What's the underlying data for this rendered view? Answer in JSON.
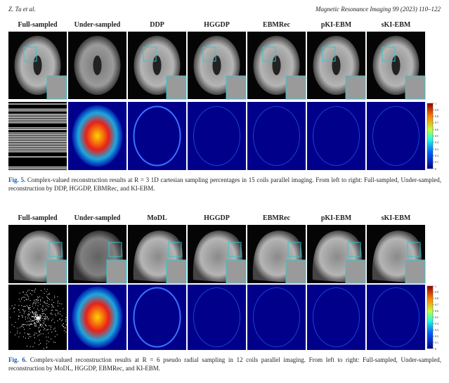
{
  "header": {
    "authors": "Z. Tu et al.",
    "journal": "Magnetic Resonance Imaging 99 (2023) 110–122"
  },
  "figures": [
    {
      "columns": [
        "Full-sampled",
        "Under-sampled",
        "DDP",
        "HGGDP",
        "EBMRec",
        "pKI-EBM",
        "sKI-EBM"
      ],
      "colorbar_ticks": [
        1,
        0.9,
        0.8,
        0.7,
        0.6,
        0.5,
        0.4,
        0.3,
        0.2,
        0.1,
        0
      ],
      "caption": {
        "label": "Fig. 5.",
        "text": "Complex-valued reconstruction results at R = 3 1D cartesian sampling percentages in 15 coils parallel imaging. From left to right: Full-sampled, Under-sampled, reconstruction by DDP, HGGDP, EBMRec, and KI-EBM."
      }
    },
    {
      "columns": [
        "Full-sampled",
        "Under-sampled",
        "MoDL",
        "HGGDP",
        "EBMRec",
        "pKI-EBM",
        "sKI-EBM"
      ],
      "colorbar_ticks": [
        1,
        0.9,
        0.8,
        0.7,
        0.6,
        0.5,
        0.4,
        0.3,
        0.2,
        0.1,
        0
      ],
      "caption": {
        "label": "Fig. 6.",
        "text": "Complex-valued reconstruction results at R = 6 pseudo radial sampling in 12 coils parallel imaging. From left to right: Full-sampled, Under-sampled, reconstruction by MoDL, HGGDP, EBMRec, and KI-EBM."
      }
    }
  ]
}
